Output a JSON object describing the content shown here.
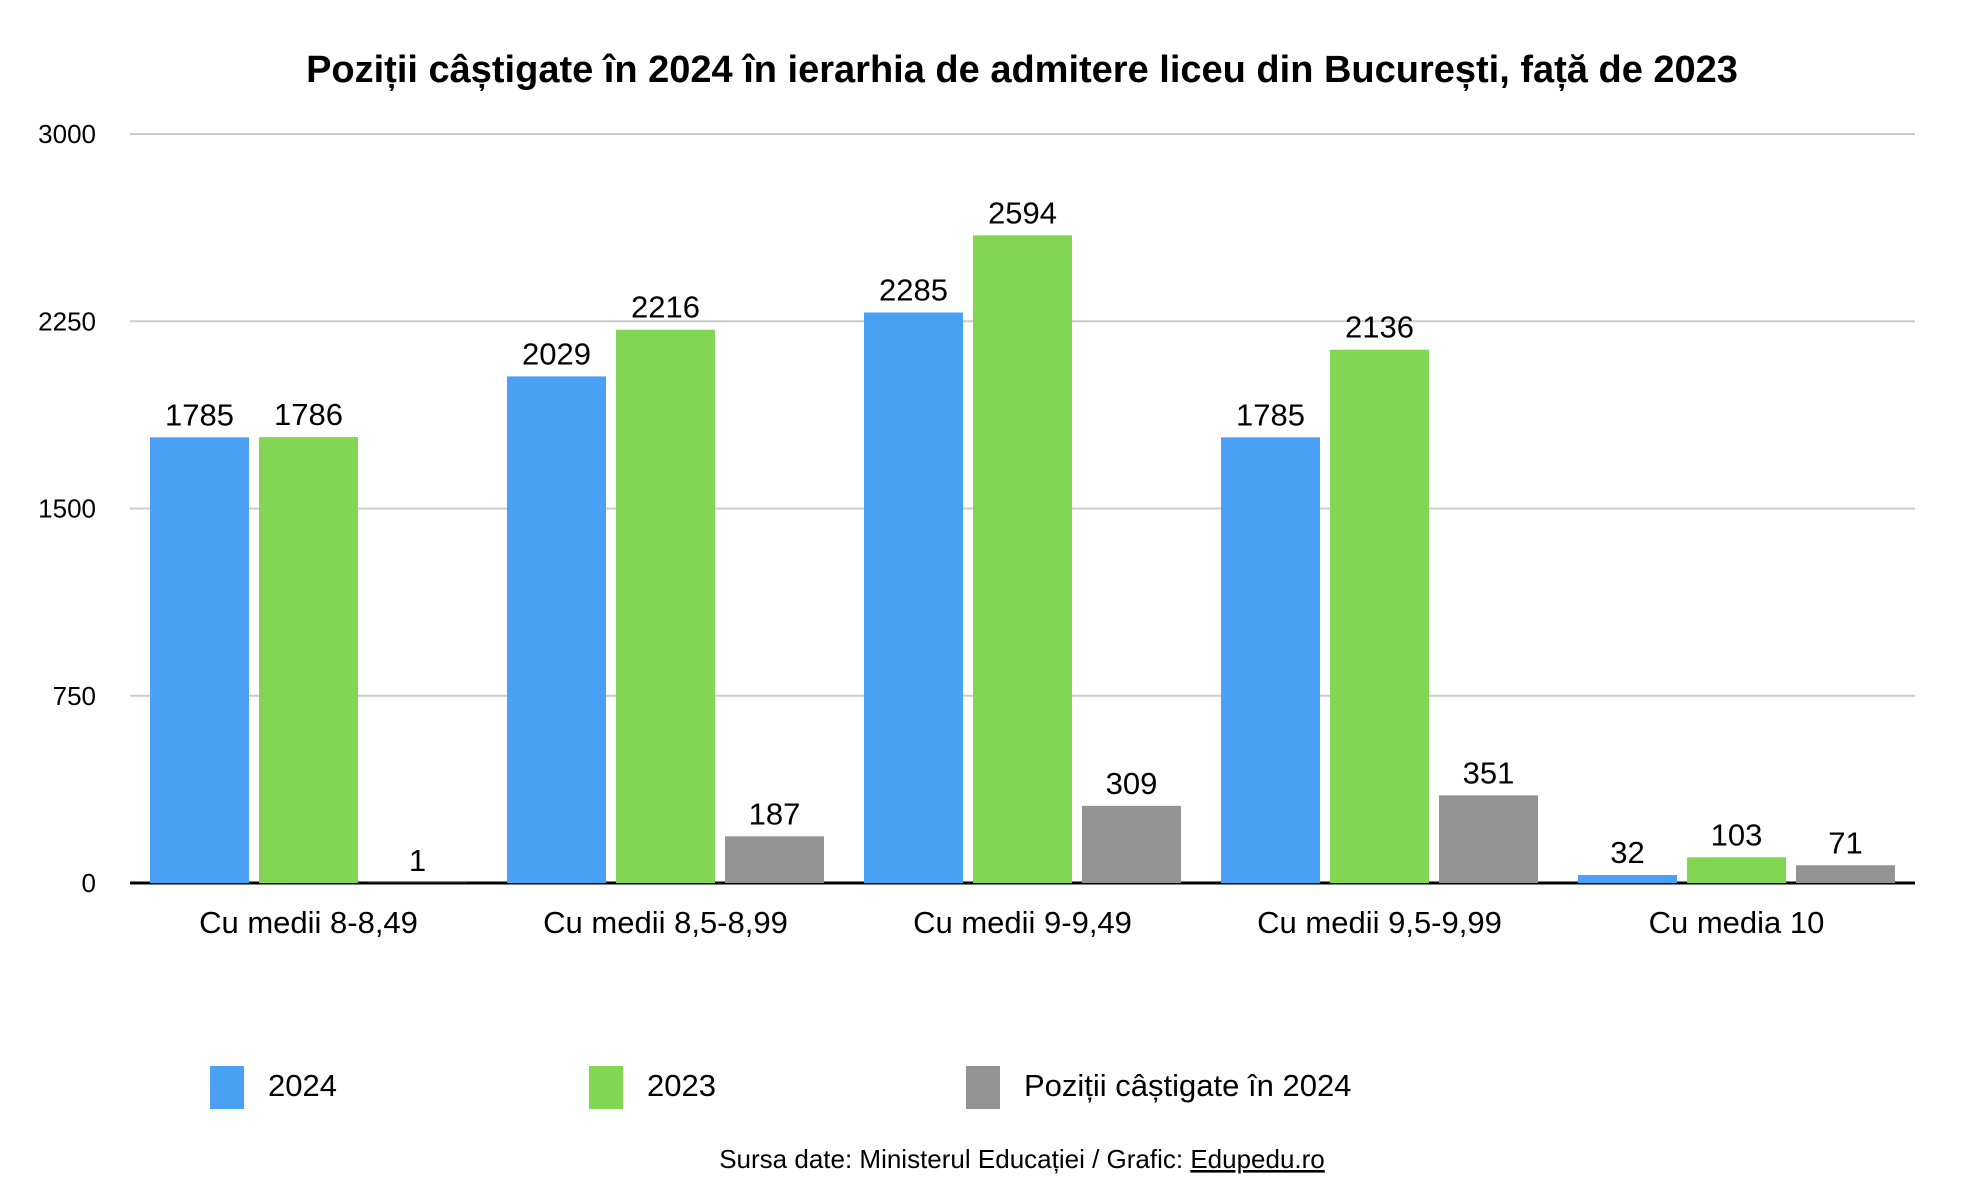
{
  "chart_data": {
    "type": "bar",
    "title": "Poziții câștigate în 2024 în ierarhia de admitere liceu din București, față de 2023",
    "categories": [
      "Cu medii 8-8,49",
      "Cu medii 8,5-8,99",
      "Cu medii 9-9,49",
      "Cu medii 9,5-9,99",
      "Cu media 10"
    ],
    "series": [
      {
        "name": "2024",
        "color": "#4aa0f5",
        "values": [
          1785,
          2029,
          2285,
          1785,
          32
        ]
      },
      {
        "name": "2023",
        "color": "#83d654",
        "values": [
          1786,
          2216,
          2594,
          2136,
          103
        ]
      },
      {
        "name": "Poziții câștigate în 2024",
        "color": "#939393",
        "values": [
          1,
          187,
          309,
          351,
          71
        ]
      }
    ],
    "ylim": [
      0,
      3000
    ],
    "yticks": [
      "0",
      "750",
      "1500",
      "2250",
      "3000"
    ],
    "grid": true,
    "legend": "bottom",
    "xlabel": "",
    "ylabel": ""
  },
  "footer": {
    "source_prefix": "Sursa date: Ministerul Educației / Grafic: ",
    "source_link": "Edupedu.ro"
  }
}
